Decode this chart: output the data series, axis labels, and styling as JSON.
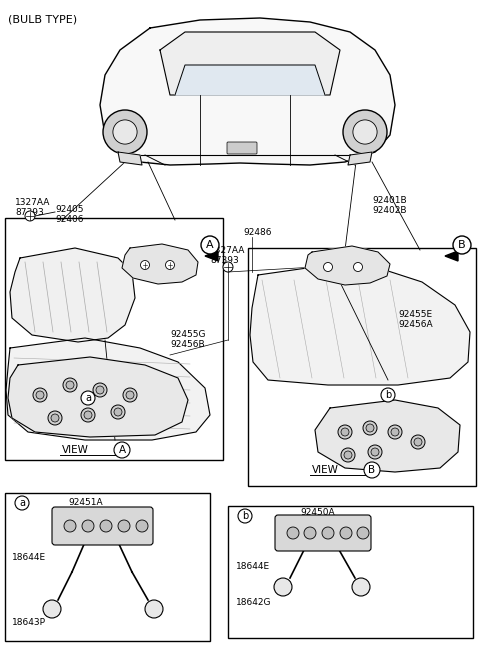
{
  "background_color": "#ffffff",
  "line_color": "#000000",
  "text_color": "#000000",
  "fig_width": 4.8,
  "fig_height": 6.62,
  "dpi": 100,
  "labels": {
    "bulb_type": "(BULB TYPE)",
    "1327AA_87393_left": "1327AA\n87393",
    "92405_92406": "92405\n92406",
    "92486": "92486",
    "1327AA_87393_center": "1327AA\n87393",
    "92401B_92402B": "92401B\n92402B",
    "92455G_92456B": "92455G\n92456B",
    "92455E_92456A": "92455E\n92456A",
    "view_A": "VIEW",
    "view_B": "VIEW",
    "92451A": "92451A",
    "18644E_left": "18644E",
    "18643P": "18643P",
    "92450A": "92450A",
    "18644E_right": "18644E",
    "18642G": "18642G"
  }
}
